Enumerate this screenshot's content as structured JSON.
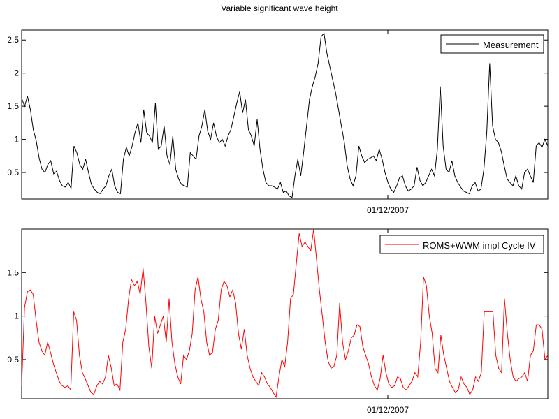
{
  "figure": {
    "title": "Variable significant wave height"
  },
  "chart_data": [
    {
      "type": "line",
      "name": "top-panel",
      "title": "Variable significant wave height",
      "xlabel": "",
      "ylabel": "",
      "x_tick_labels": [
        "01/12/2007"
      ],
      "y_ticks": [
        0.5,
        1,
        1.5,
        2,
        2.5
      ],
      "y_tick_labels": [
        "0.5",
        "1",
        "1.5",
        "2",
        "2.5"
      ],
      "ylim": [
        0.1,
        2.65
      ],
      "grid": false,
      "legend_position": "top-right",
      "series": [
        {
          "name": "Measurement",
          "color": "#000000",
          "values": [
            1.62,
            1.5,
            1.65,
            1.45,
            1.15,
            0.98,
            0.72,
            0.55,
            0.5,
            0.62,
            0.68,
            0.48,
            0.52,
            0.38,
            0.3,
            0.28,
            0.35,
            0.26,
            0.9,
            0.8,
            0.62,
            0.55,
            0.7,
            0.5,
            0.32,
            0.25,
            0.2,
            0.18,
            0.25,
            0.3,
            0.45,
            0.55,
            0.3,
            0.2,
            0.18,
            0.7,
            0.88,
            0.75,
            0.9,
            1.1,
            1.25,
            0.95,
            1.45,
            1.1,
            1.05,
            0.95,
            1.55,
            0.85,
            0.9,
            1.2,
            0.75,
            0.62,
            1.05,
            0.55,
            0.4,
            0.32,
            0.3,
            0.28,
            0.8,
            0.75,
            0.7,
            1.05,
            1.2,
            1.45,
            1.12,
            1.0,
            1.25,
            1.05,
            0.95,
            1.0,
            0.9,
            1.05,
            1.15,
            1.35,
            1.55,
            1.72,
            1.4,
            1.6,
            1.15,
            1.05,
            0.9,
            1.3,
            0.85,
            0.55,
            0.35,
            0.3,
            0.3,
            0.28,
            0.25,
            0.35,
            0.2,
            0.22,
            0.15,
            0.12,
            0.45,
            0.7,
            0.45,
            0.8,
            1.2,
            1.6,
            1.8,
            1.95,
            2.15,
            2.55,
            2.6,
            2.3,
            2.1,
            1.9,
            1.7,
            1.45,
            1.2,
            0.95,
            0.6,
            0.4,
            0.3,
            0.45,
            0.9,
            0.75,
            0.65,
            0.7,
            0.72,
            0.75,
            0.68,
            0.85,
            0.7,
            0.5,
            0.35,
            0.25,
            0.2,
            0.3,
            0.42,
            0.45,
            0.3,
            0.22,
            0.25,
            0.3,
            0.58,
            0.38,
            0.3,
            0.35,
            0.45,
            0.55,
            0.45,
            0.85,
            1.8,
            0.9,
            0.55,
            0.5,
            0.68,
            0.45,
            0.35,
            0.28,
            0.22,
            0.2,
            0.18,
            0.3,
            0.35,
            0.22,
            0.25,
            0.55,
            1.1,
            2.15,
            1.2,
            1.0,
            0.95,
            0.82,
            0.6,
            0.4,
            0.35,
            0.3,
            0.45,
            0.3,
            0.25,
            0.5,
            0.55,
            0.45,
            0.35,
            0.9,
            0.95,
            0.88,
            1.0,
            0.9
          ]
        }
      ]
    },
    {
      "type": "line",
      "name": "bottom-panel",
      "title": "",
      "xlabel": "",
      "ylabel": "",
      "x_tick_labels": [
        "01/12/2007"
      ],
      "y_ticks": [
        0.5,
        1,
        1.5
      ],
      "y_tick_labels": [
        "0.5",
        "1",
        "1.5"
      ],
      "ylim": [
        0.05,
        2.0
      ],
      "grid": false,
      "legend_position": "top-right",
      "series": [
        {
          "name": "ROMS+WWM impl Cycle IV",
          "color": "#ff0000",
          "values": [
            0.2,
            1.1,
            1.28,
            1.3,
            1.25,
            0.95,
            0.7,
            0.6,
            0.55,
            0.7,
            0.58,
            0.45,
            0.35,
            0.25,
            0.2,
            0.18,
            0.2,
            0.15,
            1.05,
            0.95,
            0.55,
            0.35,
            0.28,
            0.2,
            0.12,
            0.1,
            0.2,
            0.25,
            0.22,
            0.3,
            0.55,
            0.4,
            0.2,
            0.22,
            0.15,
            0.7,
            0.85,
            1.2,
            1.42,
            1.35,
            1.4,
            1.25,
            1.55,
            1.15,
            0.65,
            0.4,
            1.0,
            0.8,
            0.9,
            1.0,
            0.7,
            1.2,
            0.7,
            0.45,
            0.3,
            0.22,
            0.55,
            0.5,
            0.6,
            0.8,
            1.3,
            1.45,
            1.2,
            1.05,
            0.7,
            0.55,
            0.58,
            0.85,
            0.95,
            1.3,
            1.4,
            1.35,
            1.22,
            1.3,
            1.15,
            0.8,
            0.62,
            0.85,
            0.55,
            0.4,
            0.3,
            0.25,
            0.2,
            0.35,
            0.3,
            0.22,
            0.18,
            0.12,
            0.07,
            0.3,
            0.5,
            0.42,
            0.7,
            1.2,
            1.25,
            1.6,
            1.95,
            1.8,
            1.85,
            1.8,
            1.75,
            2.0,
            1.65,
            1.3,
            1.0,
            0.7,
            0.48,
            0.4,
            0.42,
            0.55,
            1.15,
            0.7,
            0.5,
            0.6,
            0.75,
            0.78,
            0.9,
            0.88,
            0.65,
            0.55,
            0.45,
            0.3,
            0.2,
            0.15,
            0.28,
            0.55,
            0.35,
            0.22,
            0.18,
            0.2,
            0.3,
            0.28,
            0.18,
            0.15,
            0.2,
            0.25,
            0.35,
            0.3,
            0.7,
            1.45,
            1.35,
            1.0,
            0.8,
            0.4,
            0.35,
            0.78,
            0.55,
            0.4,
            0.25,
            0.18,
            0.12,
            0.15,
            0.3,
            0.22,
            0.18,
            0.1,
            0.15,
            0.3,
            0.25,
            0.35,
            1.05,
            1.05,
            1.05,
            1.05,
            0.55,
            0.4,
            0.35,
            1.2,
            0.8,
            0.5,
            0.3,
            0.25,
            0.28,
            0.3,
            0.35,
            0.25,
            0.55,
            0.6,
            0.9,
            0.9,
            0.85,
            0.5,
            0.55
          ]
        }
      ]
    }
  ]
}
